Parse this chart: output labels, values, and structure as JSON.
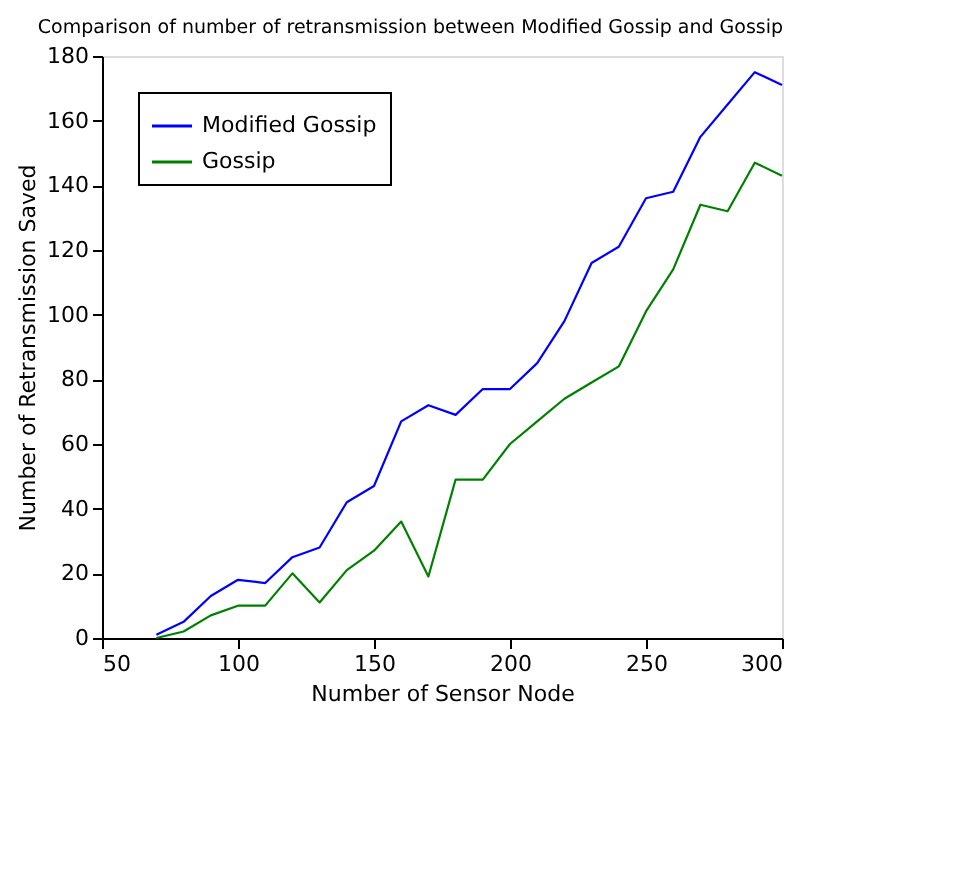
{
  "chart_data": {
    "type": "line",
    "title": "Comparison of number of retransmission between Modified Gossip and Gossip",
    "xlabel": "Number of Sensor Node",
    "ylabel": "Number of Retransmission Saved",
    "x": [
      70,
      80,
      90,
      100,
      110,
      120,
      130,
      140,
      150,
      160,
      170,
      180,
      190,
      200,
      210,
      220,
      230,
      240,
      250,
      260,
      270,
      280,
      290,
      300
    ],
    "series": [
      {
        "name": "Modified Gossip",
        "color": "#0000ff",
        "values": [
          1,
          5,
          13,
          18,
          17,
          25,
          28,
          42,
          47,
          67,
          72,
          69,
          77,
          77,
          85,
          98,
          116,
          121,
          136,
          138,
          155,
          165,
          175,
          171
        ]
      },
      {
        "name": "Gossip",
        "color": "#008000",
        "values": [
          0,
          2,
          7,
          10,
          10,
          20,
          11,
          21,
          27,
          36,
          19,
          49,
          49,
          60,
          67,
          74,
          79,
          84,
          101,
          114,
          134,
          132,
          147,
          143
        ]
      }
    ],
    "xlim": [
      50,
      300
    ],
    "xticks": [
      50,
      100,
      150,
      200,
      250,
      300
    ],
    "ylim": [
      0,
      180
    ],
    "yticks": [
      0,
      20,
      40,
      60,
      80,
      100,
      120,
      140,
      160,
      180
    ],
    "grid": false,
    "legend": "top left",
    "marker": "none",
    "line_style": "solid"
  }
}
